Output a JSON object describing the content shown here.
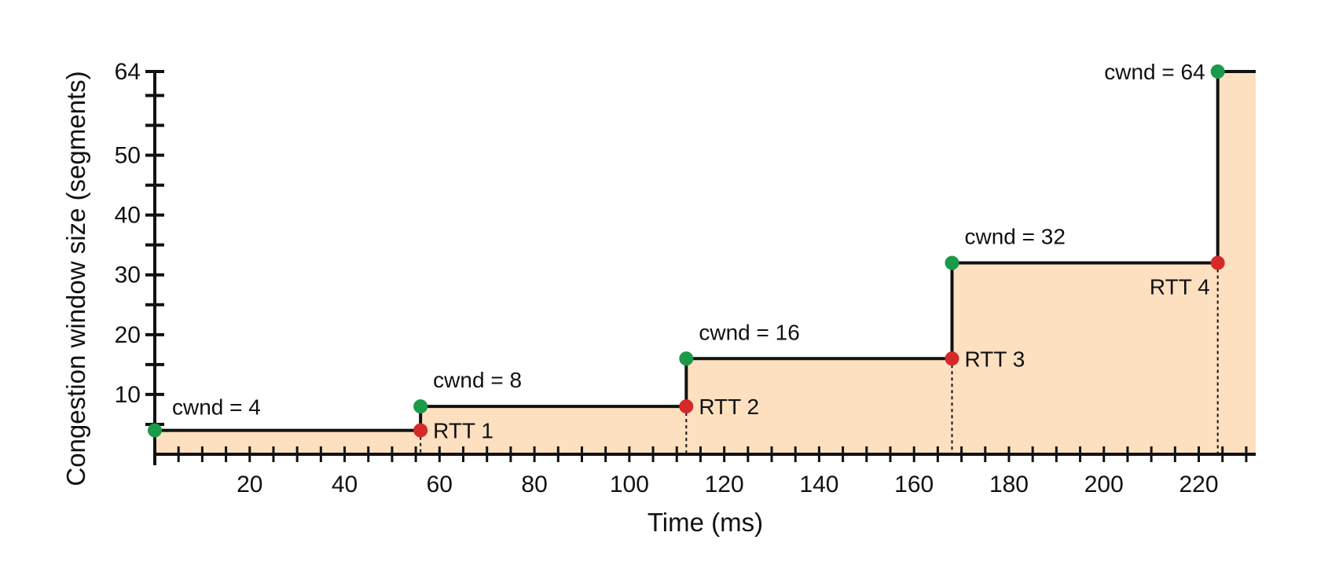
{
  "chart_data": {
    "type": "area",
    "xlabel": "Time (ms)",
    "ylabel": "Congestion window size (segments)",
    "xlim": [
      0,
      232
    ],
    "ylim": [
      0,
      64
    ],
    "x_ticks": [
      20,
      40,
      60,
      80,
      100,
      120,
      140,
      160,
      180,
      200,
      220
    ],
    "y_ticks": [
      10,
      20,
      30,
      40,
      50,
      64
    ],
    "y_minor_step": 5,
    "x_minor_step": 5,
    "step_series": [
      {
        "x": 0,
        "y": 4
      },
      {
        "x": 56,
        "y": 4
      },
      {
        "x": 56,
        "y": 8
      },
      {
        "x": 112,
        "y": 8
      },
      {
        "x": 112,
        "y": 16
      },
      {
        "x": 168,
        "y": 16
      },
      {
        "x": 168,
        "y": 32
      },
      {
        "x": 224,
        "y": 32
      },
      {
        "x": 224,
        "y": 64
      },
      {
        "x": 232,
        "y": 64
      }
    ],
    "cwnd_points": [
      {
        "x": 0,
        "y": 4,
        "label": "cwnd = 4"
      },
      {
        "x": 56,
        "y": 8,
        "label": "cwnd = 8"
      },
      {
        "x": 112,
        "y": 16,
        "label": "cwnd = 16"
      },
      {
        "x": 168,
        "y": 32,
        "label": "cwnd = 32"
      },
      {
        "x": 224,
        "y": 64,
        "label": "cwnd = 64"
      }
    ],
    "rtt_points": [
      {
        "x": 56,
        "y": 4,
        "label": "RTT 1"
      },
      {
        "x": 112,
        "y": 8,
        "label": "RTT 2"
      },
      {
        "x": 168,
        "y": 16,
        "label": "RTT 3"
      },
      {
        "x": 224,
        "y": 32,
        "label": "RTT 4"
      }
    ],
    "colors": {
      "fill": "#fde0c0",
      "line": "#111111",
      "cwnd_point": "#1a9a4a",
      "rtt_point": "#d42a2a"
    }
  }
}
